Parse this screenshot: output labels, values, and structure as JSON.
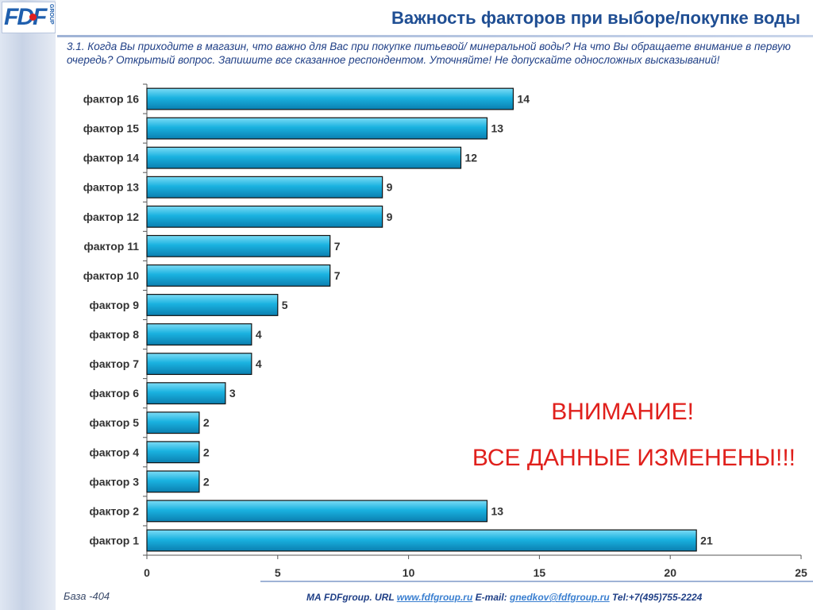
{
  "header": {
    "logo_text": "FDF",
    "logo_sub": "GROUP",
    "title": "Важность факторов при выборе/покупке воды"
  },
  "question": "3.1. Когда Вы приходите в магазин, что важно для Вас при покупке питьевой/ минеральной воды? На что Вы обращаете внимание в первую очередь? Открытый вопрос. Запишите все сказанное респондентом. Уточняйте! Не допускайте односложных высказываний!",
  "warning": {
    "line1": "ВНИМАНИЕ!",
    "line2": "ВСЕ ДАННЫЕ ИЗМЕНЕНЫ!!!"
  },
  "footer": {
    "base": "База -404",
    "company": "МА FDFgroup. URL ",
    "url": "www.fdfgroup.ru",
    "email_label": " E-mail: ",
    "email": "gnedkov@fdfgroup.ru",
    "tel": " Tel:+7(495)755-2224"
  },
  "colors": {
    "bar": "#1ab2e0",
    "bar_light": "#7ddcf6",
    "bar_dark": "#0b7fb0",
    "title": "#1f4e93",
    "warning": "#e0201c"
  },
  "chart_data": {
    "type": "bar",
    "orientation": "horizontal",
    "categories": [
      "фактор 16",
      "фактор 15",
      "фактор 14",
      "фактор 13",
      "фактор 12",
      "фактор 11",
      "фактор 10",
      "фактор 9",
      "фактор 8",
      "фактор 7",
      "фактор 6",
      "фактор 5",
      "фактор 4",
      "фактор 3",
      "фактор 2",
      "фактор 1"
    ],
    "values": [
      14,
      13,
      12,
      9,
      9,
      7,
      7,
      5,
      4,
      4,
      3,
      2,
      2,
      2,
      13,
      21
    ],
    "xlim": [
      0,
      25
    ],
    "xticks": [
      0,
      5,
      10,
      15,
      20,
      25
    ],
    "title": "",
    "xlabel": "",
    "ylabel": "",
    "grid": false,
    "data_labels": true
  }
}
